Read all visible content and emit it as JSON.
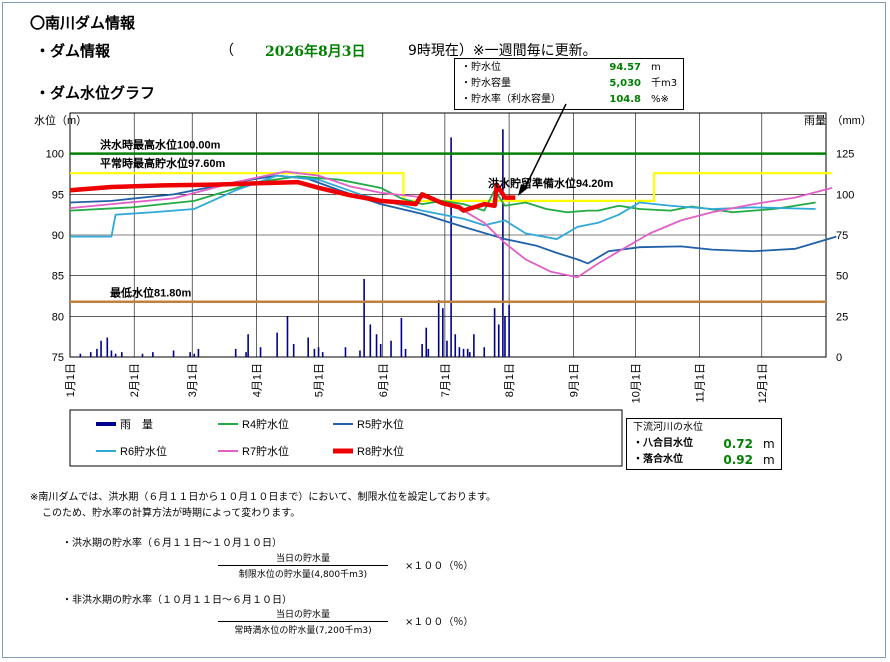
{
  "header": {
    "title": "〇南川ダム情報",
    "dam_info_label": "・ダム情報",
    "paren_open": "（",
    "date": "2026年8月3日",
    "time_suffix": "9時現在）※一週間毎に更新。",
    "graph_label": "・ダム水位グラフ"
  },
  "info_box": {
    "rows": [
      {
        "label": "・貯水位",
        "value": "94.57",
        "unit": "m"
      },
      {
        "label": "・貯水容量",
        "value": "5,030",
        "unit": "千m3"
      },
      {
        "label": "・貯水率（利水容量）",
        "value": "104.8",
        "unit": "%※"
      }
    ]
  },
  "downstream": {
    "title": "下流河川の水位",
    "rows": [
      {
        "label": "・八合目水位",
        "value": "0.72",
        "unit": "m"
      },
      {
        "label": "・落合水位",
        "value": "0.92",
        "unit": "m"
      }
    ]
  },
  "notes": {
    "line1": "※南川ダムでは、洪水期（６月１１日から１０月１０日まで）において、制限水位を設定しております。",
    "line2": "このため、貯水率の計算方法が時期によって変わります。",
    "flood_title": "・洪水期の貯水率（６月１１日～１０月１０日）",
    "flood_num": "当日の貯水量",
    "flood_den": "制限水位の貯水量(4,800千m3)",
    "flood_mult": "×１００（％）",
    "nonflood_title": "・非洪水期の貯水率（１０月１１日～６月１０日）",
    "nonflood_num": "当日の貯水量",
    "nonflood_den": "常時満水位の貯水量(7,200千m3)",
    "nonflood_mult": "×１００（％）"
  },
  "chart_data": {
    "type": "line",
    "ylabel": "水位（m）",
    "y2label": "雨量　（mm）",
    "ylim": [
      75,
      105
    ],
    "y2lim": [
      0,
      150
    ],
    "yticks": [
      "75",
      "80",
      "85",
      "90",
      "95",
      "100"
    ],
    "y2ticks": [
      "0",
      "25",
      "50",
      "75",
      "100",
      "125"
    ],
    "months": [
      "1月1日",
      "2月1日",
      "3月1日",
      "4月1日",
      "5月1日",
      "6月1日",
      "7月1日",
      "8月1日",
      "9月1日",
      "10月1日",
      "11月1日",
      "12月1日"
    ],
    "reference_lines": [
      {
        "label": "洪水時最高水位100.00m",
        "value": 100.0,
        "color": "#008000"
      },
      {
        "label": "平常時最高貯水位97.60m",
        "value": 97.6,
        "color": "#ffff00"
      },
      {
        "label": "洪水貯留準備水位94.20m",
        "value": 94.2,
        "color": "#ffff00"
      },
      {
        "label": "最低水位81.80m",
        "value": 81.8,
        "color": "#c0803c"
      }
    ],
    "colors": {
      "rain": "#00008b",
      "R4": "#22aa44",
      "R5": "#2060a8",
      "R6": "#30a8d8",
      "R7": "#e060c8",
      "R8": "#ee0000",
      "limit": "#ffff00",
      "grid": "#000000"
    },
    "legend": [
      {
        "name": "雨　量",
        "key": "rain"
      },
      {
        "name": "R4貯水位",
        "key": "R4"
      },
      {
        "name": "R5貯水位",
        "key": "R5"
      },
      {
        "name": "R6貯水位",
        "key": "R6"
      },
      {
        "name": "R7貯水位",
        "key": "R7"
      },
      {
        "name": "R8貯水位",
        "key": "R8"
      }
    ],
    "series": [
      {
        "name": "R4貯水位",
        "key": "R4",
        "width": 1.8,
        "x": [
          0,
          30,
          60,
          90,
          110,
          130,
          150,
          160,
          170,
          180,
          190,
          200,
          205,
          210,
          220,
          230,
          240,
          250,
          255,
          265,
          275,
          290,
          300,
          320,
          340,
          360
        ],
        "y": [
          93.0,
          93.4,
          94.2,
          96.5,
          97.2,
          96.8,
          95.8,
          94.5,
          93.8,
          94.2,
          93.8,
          93.0,
          95.5,
          93.6,
          94.0,
          93.2,
          92.8,
          93.0,
          93.0,
          93.6,
          93.2,
          93.0,
          93.5,
          92.8,
          93.2,
          94.0
        ]
      },
      {
        "name": "R5貯水位",
        "key": "R5",
        "width": 1.8,
        "x": [
          0,
          20,
          50,
          80,
          100,
          115,
          130,
          150,
          170,
          190,
          210,
          225,
          235,
          245,
          250,
          260,
          275,
          295,
          310,
          330,
          350,
          370
        ],
        "y": [
          94.0,
          94.2,
          95.0,
          96.5,
          97.3,
          96.9,
          95.5,
          93.8,
          92.6,
          91.0,
          89.5,
          88.7,
          87.8,
          87.0,
          86.5,
          88.0,
          88.5,
          88.6,
          88.2,
          88.0,
          88.3,
          89.8
        ]
      },
      {
        "name": "R6貯水位",
        "key": "R6",
        "width": 1.8,
        "x": [
          0,
          20,
          22,
          40,
          60,
          80,
          100,
          120,
          140,
          170,
          190,
          200,
          210,
          220,
          235,
          245,
          255,
          265,
          275,
          290,
          310,
          330,
          360
        ],
        "y": [
          89.8,
          89.8,
          92.5,
          92.8,
          93.2,
          95.5,
          97.3,
          96.8,
          95.0,
          93.0,
          92.0,
          91.2,
          91.8,
          90.2,
          89.5,
          91.0,
          91.5,
          92.5,
          94.0,
          93.6,
          93.2,
          93.4,
          93.2
        ]
      },
      {
        "name": "R7貯水位",
        "key": "R7",
        "width": 1.8,
        "x": [
          0,
          20,
          50,
          80,
          104,
          120,
          135,
          150,
          175,
          190,
          200,
          210,
          220,
          232,
          245,
          255,
          265,
          280,
          295,
          310,
          330,
          350,
          368
        ],
        "y": [
          93.3,
          93.8,
          94.5,
          96.5,
          97.8,
          97.3,
          96.0,
          95.2,
          94.5,
          93.0,
          91.5,
          89.0,
          87.0,
          85.5,
          84.8,
          86.5,
          88.0,
          90.2,
          91.8,
          92.8,
          93.8,
          94.6,
          95.8
        ]
      },
      {
        "name": "R8貯水位",
        "key": "R8",
        "width": 4.5,
        "x": [
          0,
          20,
          45,
          70,
          95,
          110,
          120,
          135,
          150,
          160,
          167,
          170,
          180,
          188,
          190,
          200,
          205,
          206,
          210,
          215
        ],
        "y": [
          95.5,
          95.9,
          96.1,
          96.2,
          96.4,
          96.5,
          95.8,
          94.9,
          94.2,
          94.0,
          93.8,
          95.0,
          93.9,
          93.4,
          93.0,
          93.8,
          93.6,
          96.2,
          94.6,
          94.6
        ]
      }
    ],
    "limit_line": {
      "x": [
        0,
        161,
        161,
        282,
        282,
        368
      ],
      "y": [
        97.6,
        97.6,
        94.2,
        94.2,
        97.6,
        97.6
      ]
    },
    "rainfall": {
      "x": [
        5,
        10,
        13,
        15,
        18,
        20,
        22,
        25,
        35,
        40,
        50,
        58,
        60,
        62,
        80,
        85,
        86,
        92,
        100,
        105,
        108,
        115,
        118,
        120,
        122,
        133,
        140,
        142,
        145,
        148,
        150,
        155,
        160,
        162,
        170,
        172,
        173,
        178,
        180,
        182,
        184,
        186,
        188,
        190,
        192,
        193,
        195,
        200,
        205,
        207,
        209,
        210,
        212
      ],
      "y": [
        2,
        3,
        5,
        10,
        12,
        4,
        2,
        3,
        2,
        3,
        4,
        3,
        2,
        5,
        5,
        3,
        14,
        6,
        15,
        25,
        8,
        12,
        5,
        6,
        3,
        6,
        4,
        48,
        20,
        14,
        8,
        10,
        24,
        5,
        8,
        18,
        5,
        35,
        30,
        10,
        135,
        14,
        6,
        5,
        5,
        3,
        14,
        6,
        30,
        20,
        140,
        25,
        32
      ]
    }
  }
}
